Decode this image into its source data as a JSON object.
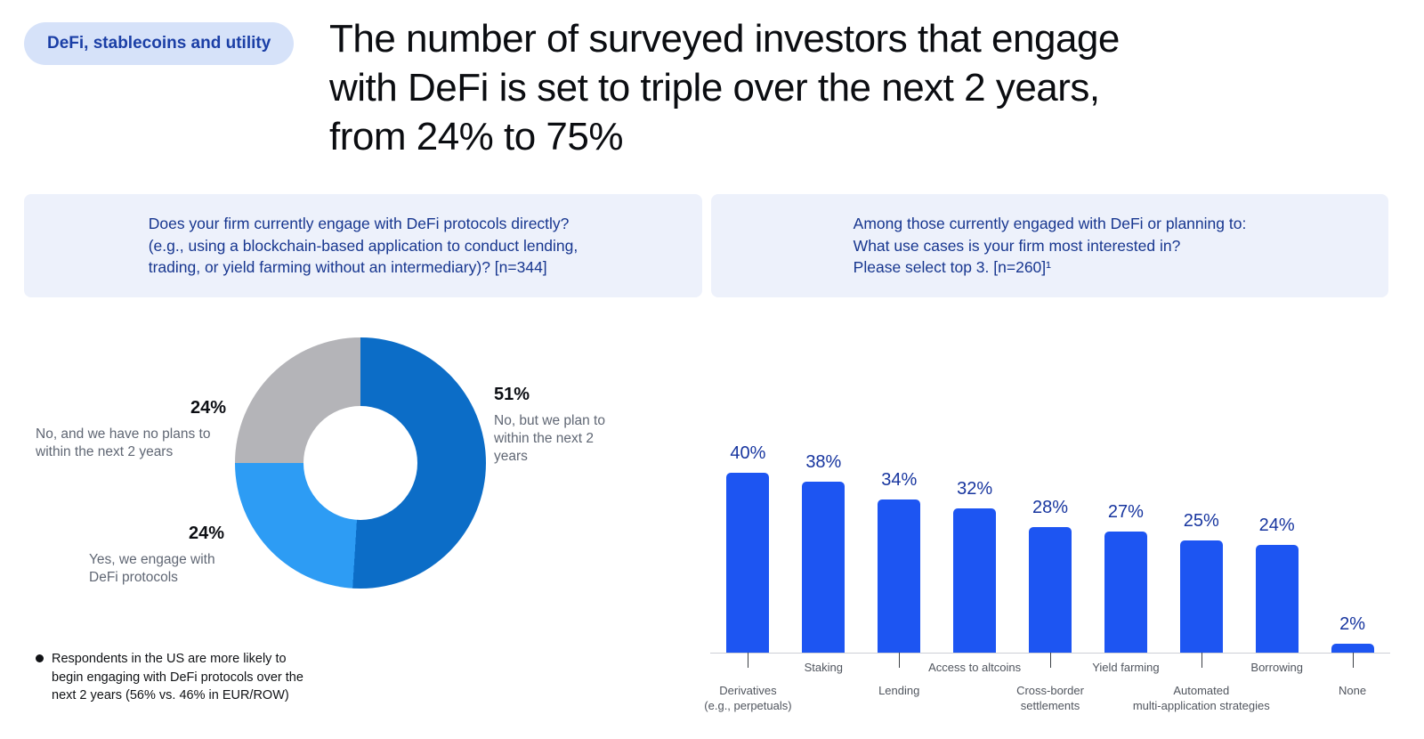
{
  "badge": {
    "label": "DeFi, stablecoins and utility"
  },
  "title_lines": [
    "The number of surveyed investors that engage",
    "with DeFi is set to triple over the next 2 years,",
    "from 24% to 75%"
  ],
  "questions": {
    "donut": [
      "Does your firm currently engage with DeFi protocols directly?",
      "(e.g., using a blockchain-based application to conduct lending,",
      "trading, or yield farming without an intermediary)? [n=344]"
    ],
    "bars": [
      "Among those currently engaged with DeFi or planning to:",
      "What use cases is your firm most interested in?",
      "Please select top 3. [n=260]¹"
    ]
  },
  "footnote": "Respondents in the US are more likely to begin engaging with DeFi protocols over the next 2 years (56% vs. 46% in EUR/ROW)",
  "colors": {
    "badge_bg": "#d6e2f9",
    "badge_text": "#1b3fa6",
    "question_box_bg": "#edf1fb",
    "question_text": "#17368f",
    "donut_dark_blue": "#0c6dc7",
    "donut_light_blue": "#2d9cf4",
    "donut_gray": "#b4b4b8",
    "bar_blue": "#1d55f2",
    "bar_value_text": "#17359f"
  },
  "chart_data": [
    {
      "type": "pie",
      "donut": true,
      "question": "Does your firm currently engage with DeFi protocols directly? (e.g., using a blockchain-based application to conduct lending, trading, or yield farming without an intermediary)? [n=344]",
      "slices": [
        {
          "label": "No, but we plan to within the next 2 years",
          "value": 51,
          "pct": "51%",
          "color": "#0c6dc7"
        },
        {
          "label": "Yes, we engage with DeFi protocols",
          "value": 24,
          "pct": "24%",
          "color": "#2d9cf4"
        },
        {
          "label": "No, and we have no plans to within the next 2 years",
          "value": 24,
          "pct": "24%",
          "color": "#b4b4b8"
        }
      ]
    },
    {
      "type": "bar",
      "question": "Among those currently engaged with DeFi or planning to: What use cases is your firm most interested in? Please select top 3. [n=260]",
      "categories": [
        "Derivatives\n(e.g., perpetuals)",
        "Staking",
        "Lending",
        "Access to altcoins",
        "Cross-border\nsettlements",
        "Yield farming",
        "Automated\nmulti-application strategies",
        "Borrowing",
        "None"
      ],
      "values": [
        40,
        38,
        34,
        32,
        28,
        27,
        25,
        24,
        2
      ],
      "unit": "%",
      "ylim": [
        0,
        45
      ],
      "grid": false,
      "legend": false,
      "bar_color": "#1d55f2"
    }
  ]
}
